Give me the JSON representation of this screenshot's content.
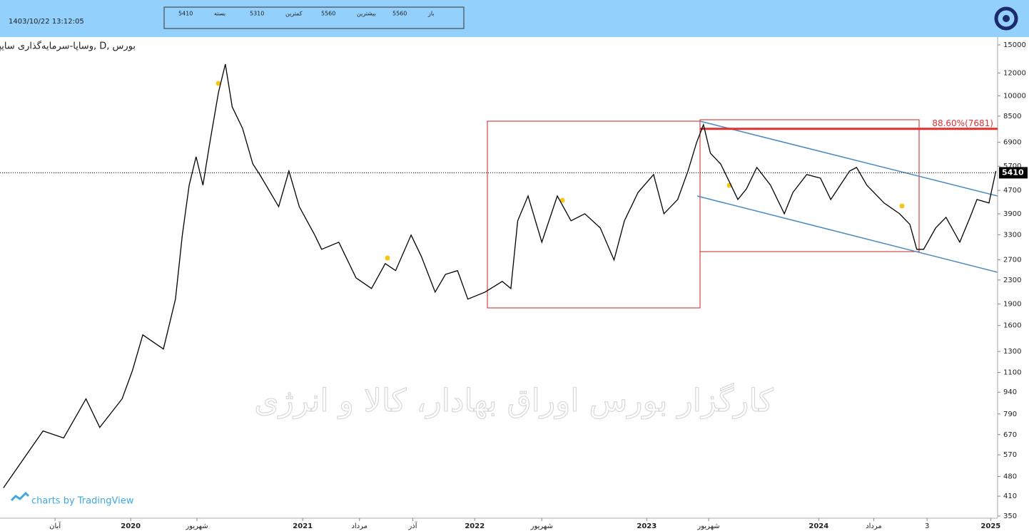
{
  "header": {
    "timestamp": "1403/10/22 13:12:05",
    "info": [
      {
        "label": "بسته",
        "value": 5410
      },
      {
        "label": "کمترین",
        "value": 5310
      },
      {
        "label": "بیشترین",
        "value": 5560
      },
      {
        "label": "باز",
        "value": 5560
      }
    ]
  },
  "footer": {
    "credit": "charts by TradingView"
  },
  "chart_data": {
    "type": "line",
    "title": "وساپا-سرمایه‌گذاری سایپا, D, بورس",
    "watermark": "کارگزار بورس اوراق بهادار، کالا و انرژی",
    "log_scale": true,
    "grid": false,
    "xlim": [
      2019.24,
      2025.04
    ],
    "ylim": [
      344,
      15970
    ],
    "yticks": [
      15000,
      12000,
      10000,
      8500,
      6900,
      5700,
      4700,
      3900,
      3300,
      2700,
      2300,
      1900,
      1600,
      1300,
      1100,
      940,
      790,
      670,
      570,
      480,
      410,
      350
    ],
    "xticks": [
      {
        "value": 2019.56,
        "label": "آبان"
      },
      2020,
      {
        "value": 2020.385,
        "label": "شهریور"
      },
      2021,
      {
        "value": 2021.33,
        "label": "مرداد"
      },
      {
        "value": 2021.64,
        "label": "آذر"
      },
      2022,
      {
        "value": 2022.39,
        "label": "شهریور"
      },
      2023,
      {
        "value": 2023.36,
        "label": "شهریور"
      },
      2024,
      {
        "value": 2024.32,
        "label": "مرداد"
      },
      {
        "value": 2024.63,
        "label": "3"
      },
      2025
    ],
    "last_price": 5410,
    "fib_level": {
      "value": 7681,
      "label": "88.60%(7681)",
      "color": "#e03030"
    },
    "series": [
      {
        "name": "وساپا",
        "color": "#000000",
        "x": [
          2019.26,
          2019.36,
          2019.49,
          2019.61,
          2019.74,
          2019.82,
          2019.95,
          2020.01,
          2020.07,
          2020.19,
          2020.26,
          2020.3,
          2020.34,
          2020.38,
          2020.42,
          2020.46,
          2020.51,
          2020.55,
          2020.59,
          2020.65,
          2020.71,
          2020.75,
          2020.86,
          2020.92,
          2020.98,
          2021.07,
          2021.11,
          2021.21,
          2021.31,
          2021.4,
          2021.48,
          2021.54,
          2021.63,
          2021.69,
          2021.77,
          2021.83,
          2021.9,
          2021.96,
          2022.06,
          2022.16,
          2022.21,
          2022.25,
          2022.31,
          2022.39,
          2022.48,
          2022.56,
          2022.64,
          2022.73,
          2022.81,
          2022.87,
          2022.95,
          2023.04,
          2023.1,
          2023.18,
          2023.24,
          2023.29,
          2023.33,
          2023.37,
          2023.43,
          2023.49,
          2023.53,
          2023.58,
          2023.64,
          2023.72,
          2023.8,
          2023.85,
          2023.93,
          2024.01,
          2024.07,
          2024.18,
          2024.22,
          2024.28,
          2024.38,
          2024.47,
          2024.53,
          2024.57,
          2024.61,
          2024.68,
          2024.74,
          2024.82,
          2024.88,
          2024.92,
          2024.99,
          2025.03
        ],
        "values": [
          438,
          534,
          690,
          652,
          891,
          710,
          891,
          1117,
          1485,
          1326,
          1974,
          3291,
          4899,
          6147,
          4899,
          6890,
          10251,
          12870,
          9150,
          7710,
          5805,
          5334,
          4130,
          5487,
          4130,
          3291,
          2937,
          3110,
          2340,
          2148,
          2622,
          2478,
          3291,
          2775,
          2088,
          2406,
          2478,
          1974,
          2088,
          2274,
          2148,
          3687,
          4497,
          3110,
          4497,
          3687,
          3902,
          3483,
          2697,
          3687,
          4627,
          5334,
          3902,
          4371,
          5487,
          6890,
          7940,
          6324,
          5805,
          4899,
          4371,
          4761,
          5646,
          4899,
          3902,
          4627,
          5334,
          5184,
          4371,
          5487,
          5646,
          4899,
          4250,
          3902,
          3583,
          2937,
          2937,
          3483,
          3792,
          3110,
          3792,
          4371,
          4250,
          5487
        ]
      }
    ]
  }
}
